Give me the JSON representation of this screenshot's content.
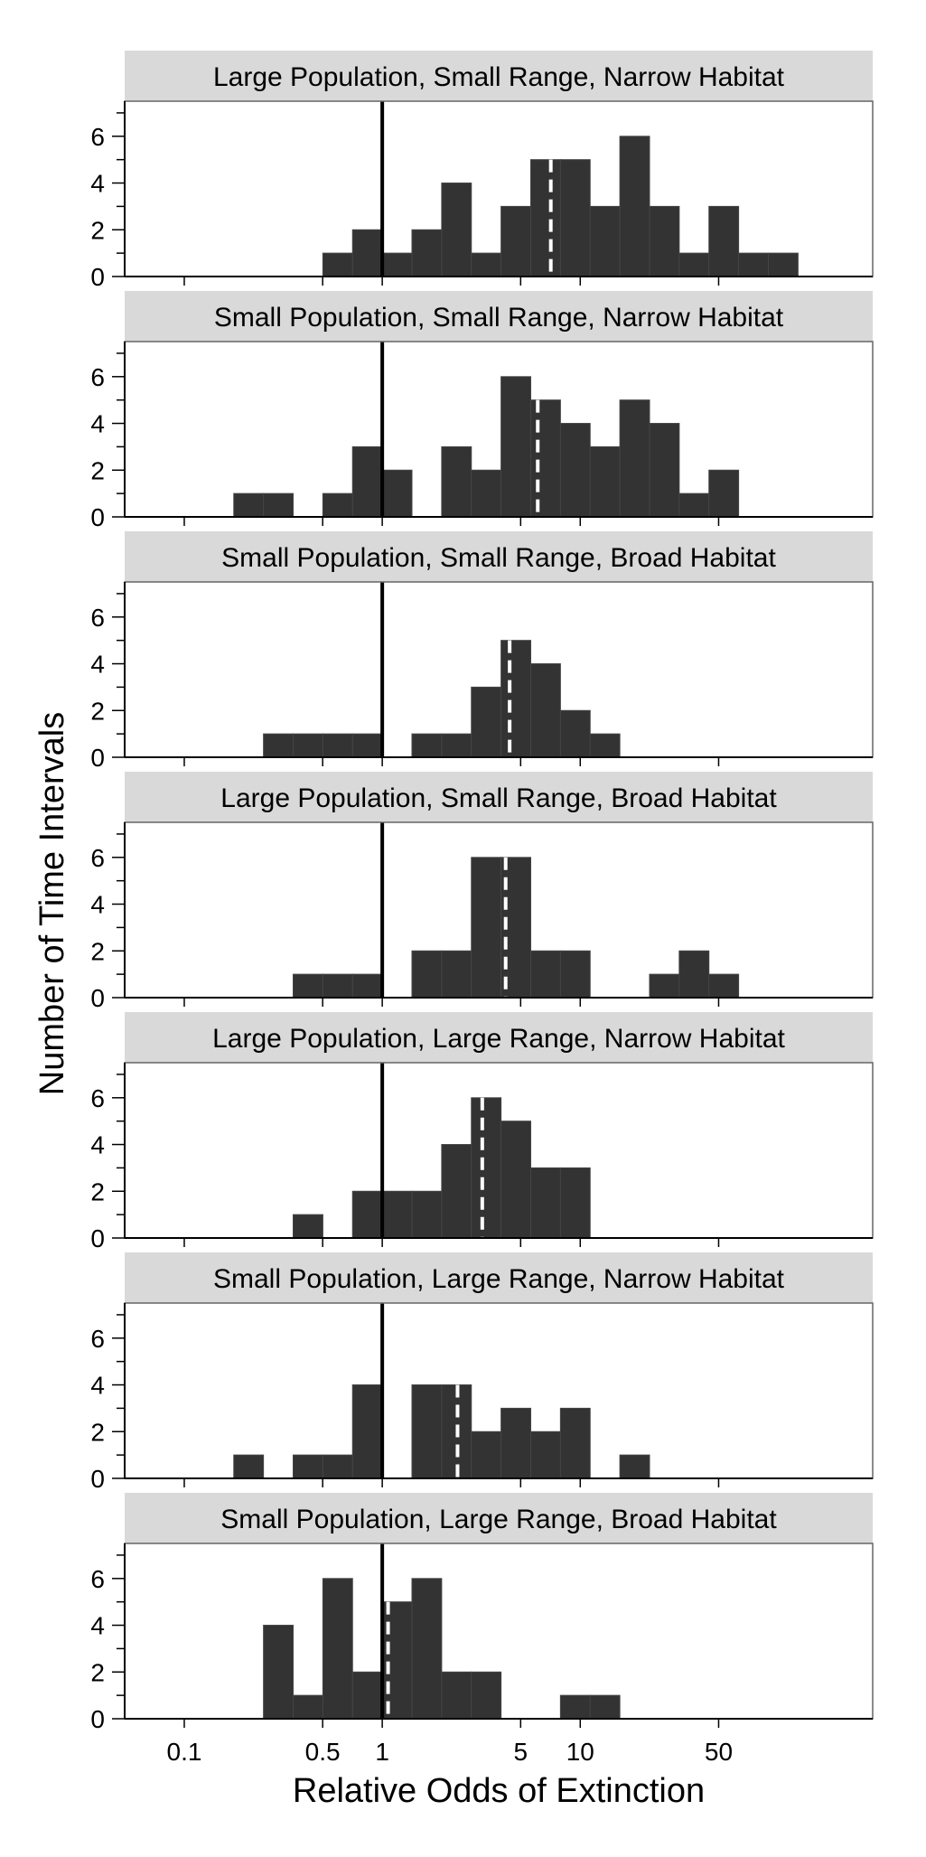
{
  "chart_data": {
    "type": "histogram",
    "x_scale": "log10",
    "bin_edges_log10": [
      -1.2,
      -1.05,
      -0.9,
      -0.75,
      -0.6,
      -0.45,
      -0.3,
      -0.15,
      0.0,
      0.15,
      0.3,
      0.45,
      0.6,
      0.75,
      0.9,
      1.05,
      1.2,
      1.35,
      1.5,
      1.65,
      1.8,
      1.95,
      2.1,
      2.25
    ],
    "xlim": [
      0.05,
      300
    ],
    "ylim": [
      0,
      7.5
    ],
    "xlabel": "Relative Odds of Extinction",
    "ylabel": "Number of Time Intervals",
    "x_ticks": [
      {
        "value": 0.1,
        "label": "0.1"
      },
      {
        "value": 0.5,
        "label": "0.5"
      },
      {
        "value": 1,
        "label": "1"
      },
      {
        "value": 5,
        "label": "5"
      },
      {
        "value": 10,
        "label": "10"
      },
      {
        "value": 50,
        "label": "50"
      }
    ],
    "y_ticks": [
      {
        "value": 0,
        "label": "0"
      },
      {
        "value": 2,
        "label": "2"
      },
      {
        "value": 4,
        "label": "4"
      },
      {
        "value": 6,
        "label": "6"
      }
    ],
    "reference_line_x": 1,
    "panels": [
      {
        "title": "Large Population, Small Range, Narrow Habitat",
        "counts": [
          0,
          0,
          0,
          0,
          0,
          0,
          1,
          2,
          1,
          2,
          4,
          1,
          3,
          5,
          5,
          3,
          6,
          3,
          1,
          3,
          1,
          1,
          0
        ],
        "median_x": 7.1
      },
      {
        "title": "Small Population, Small Range, Narrow Habitat",
        "counts": [
          0,
          0,
          0,
          1,
          1,
          0,
          1,
          3,
          2,
          0,
          3,
          2,
          6,
          5,
          4,
          3,
          5,
          4,
          1,
          2,
          0,
          0,
          0
        ],
        "median_x": 6.1
      },
      {
        "title": "Small Population, Small Range, Broad Habitat",
        "counts": [
          0,
          0,
          0,
          0,
          1,
          1,
          1,
          1,
          0,
          1,
          1,
          3,
          5,
          4,
          2,
          1,
          0,
          0,
          0,
          0,
          0,
          0,
          0
        ],
        "median_x": 4.4
      },
      {
        "title": "Large Population, Small Range, Broad Habitat",
        "counts": [
          0,
          0,
          0,
          0,
          0,
          1,
          1,
          1,
          0,
          2,
          2,
          6,
          6,
          2,
          2,
          0,
          0,
          1,
          2,
          1,
          0,
          0,
          0
        ],
        "median_x": 4.2
      },
      {
        "title": "Large Population, Large Range, Narrow Habitat",
        "counts": [
          0,
          0,
          0,
          0,
          0,
          1,
          0,
          2,
          2,
          2,
          4,
          6,
          5,
          3,
          3,
          0,
          0,
          0,
          0,
          0,
          0,
          0,
          0
        ],
        "median_x": 3.2
      },
      {
        "title": "Small Population, Large Range, Narrow Habitat",
        "counts": [
          0,
          0,
          0,
          1,
          0,
          1,
          1,
          4,
          0,
          4,
          4,
          2,
          3,
          2,
          3,
          0,
          1,
          0,
          0,
          0,
          0,
          0,
          0
        ],
        "median_x": 2.4
      },
      {
        "title": "Small Population, Large Range, Broad Habitat",
        "counts": [
          0,
          0,
          0,
          0,
          4,
          1,
          6,
          2,
          5,
          6,
          2,
          2,
          0,
          0,
          1,
          1,
          0,
          0,
          0,
          0,
          0,
          0,
          0
        ],
        "median_x": 1.07
      }
    ]
  }
}
